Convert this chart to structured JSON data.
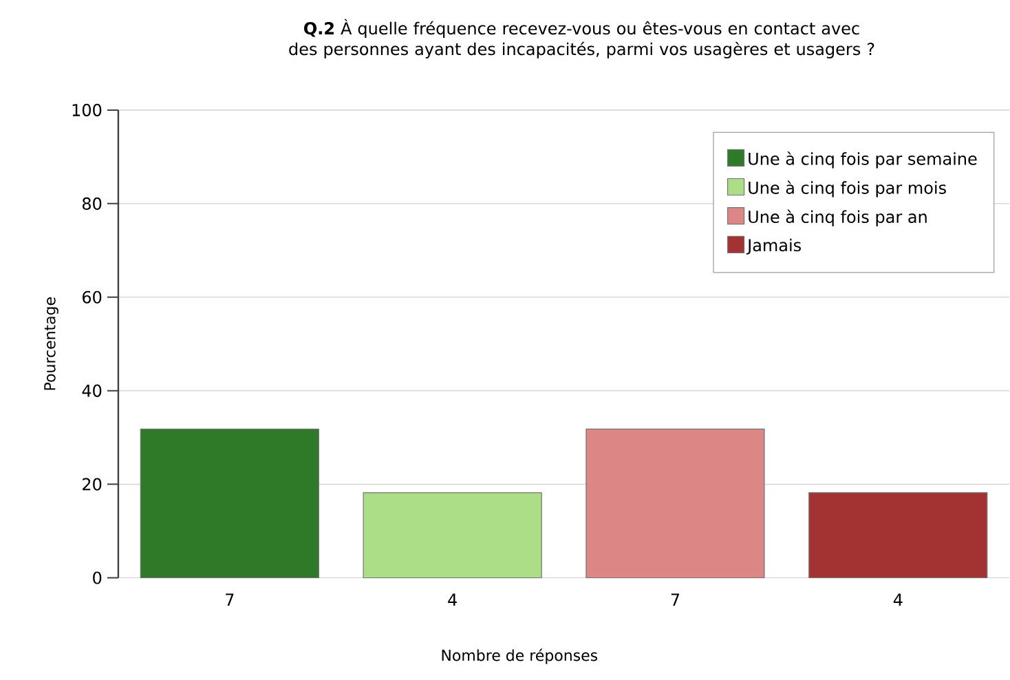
{
  "chart_data": {
    "type": "bar",
    "title": "**Q.2** À quelle fréquence recevez-vous ou êtes-vous en contact avec des personnes ayant des incapacités, parmi vos usagères et usagers ?",
    "xlabel": "Nombre de réponses",
    "ylabel": "Pourcentage",
    "categories": [
      "7",
      "4",
      "7",
      "4"
    ],
    "series": [
      {
        "name": "Une à cinq fois par semaine",
        "color": "#2e7a28",
        "values": [
          31.8,
          null,
          null,
          null
        ]
      },
      {
        "name": "Une à cinq fois par mois",
        "color": "#acde88",
        "values": [
          null,
          18.2,
          null,
          null
        ]
      },
      {
        "name": "Une à cinq fois par an",
        "color": "#dc8686",
        "values": [
          null,
          null,
          31.8,
          null
        ]
      },
      {
        "name": "Jamais",
        "color": "#a33333",
        "values": [
          null,
          null,
          null,
          18.2
        ]
      }
    ],
    "ylim": [
      0,
      100
    ],
    "yticks": [
      0,
      20,
      40,
      60,
      80,
      100
    ],
    "grid": "y",
    "legend": "top right"
  }
}
